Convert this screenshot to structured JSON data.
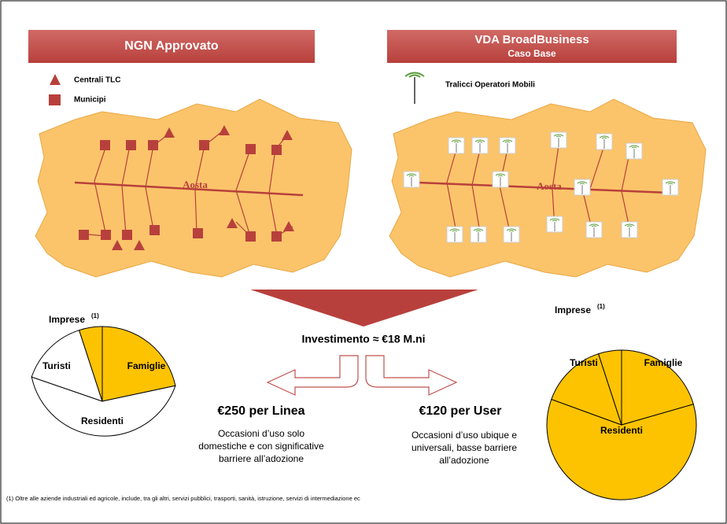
{
  "left_panel": {
    "title": "NGN Approvato",
    "legend": [
      "Centrali TLC",
      "Municipi"
    ],
    "map_label": "Aosta"
  },
  "right_panel": {
    "title": "VDA BroadBusiness",
    "subtitle": "Caso Base",
    "legend": [
      "Tralicci Operatori Mobili"
    ],
    "map_label": "Aosta"
  },
  "left_pie": {
    "labels": {
      "imprese": "Imprese",
      "imprese_note": "(1)",
      "turisti": "Turisti",
      "famiglie": "Famiglie",
      "residenti": "Residenti"
    }
  },
  "right_pie": {
    "labels": {
      "imprese": "Imprese",
      "imprese_note": "(1)",
      "turisti": "Turisti",
      "famiglie": "Famiglie",
      "residenti": "Residenti"
    }
  },
  "investment": "Investimento ≈ €18 M.ni",
  "left_cost": {
    "price": "€250  per Linea",
    "description": [
      "Occasioni d’uso solo",
      "domestiche e con significative",
      "barriere all’adozione"
    ]
  },
  "right_cost": {
    "price": "€120 per User",
    "description": [
      "Occasioni d’uso ubique e",
      "universali, basse barriere",
      "all’adozione"
    ]
  },
  "footnote": "(1) Oltre alle aziende industriali ed agricole, include, tra gli altri, servizi pubblici, trasporti, sanità, istruzione, servizi di intermediazione ec"
}
